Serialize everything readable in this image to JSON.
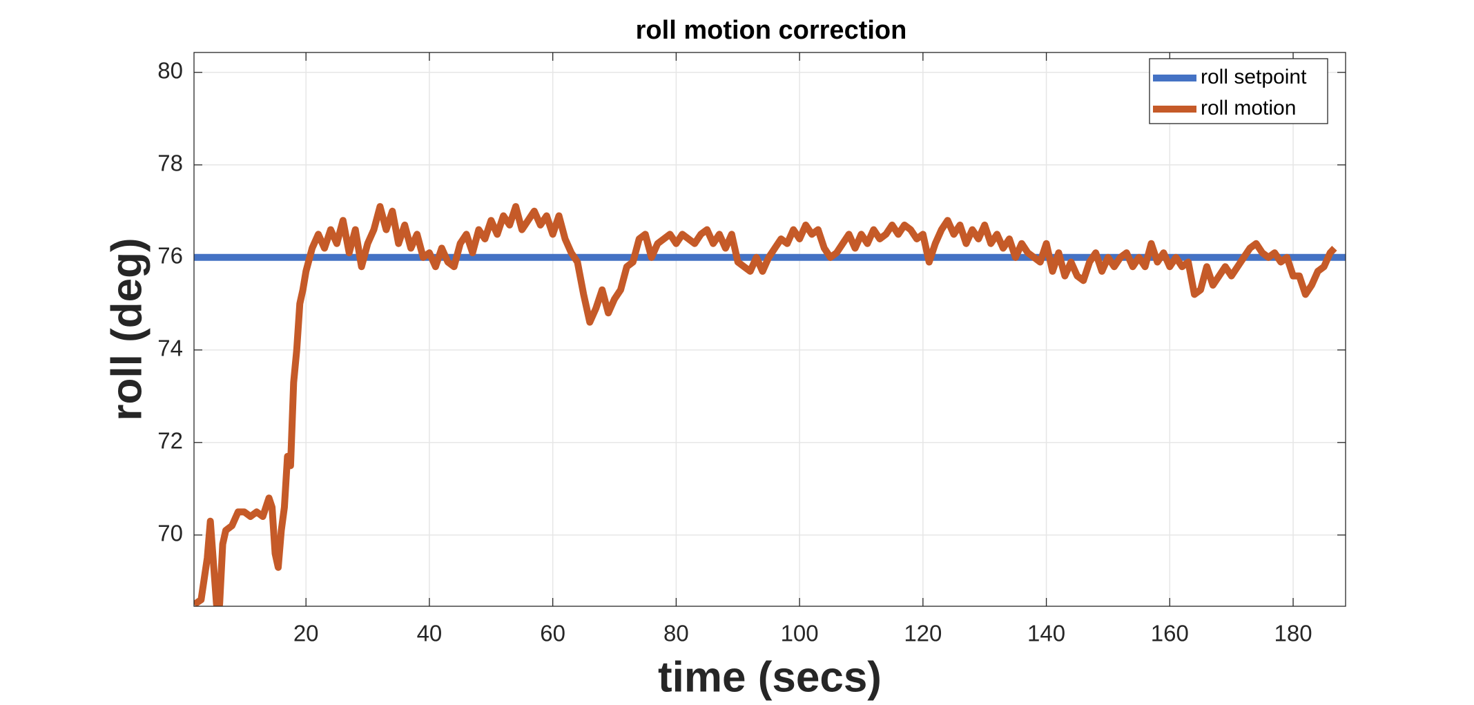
{
  "chart_data": {
    "type": "line",
    "title": "roll motion correction",
    "x_label": "time (secs)",
    "y_label": "roll (deg)",
    "xlim": [
      1.85,
      188.5
    ],
    "ylim": [
      68.46,
      80.43
    ],
    "xticks": [
      20,
      40,
      60,
      80,
      100,
      120,
      140,
      160,
      180
    ],
    "yticks": [
      70,
      72,
      74,
      76,
      78,
      80
    ],
    "grid": true,
    "legend_position": "upper-right",
    "series": [
      {
        "name": "roll setpoint",
        "color": "#4472c4",
        "x": [
          1.85,
          188.5
        ],
        "values": [
          76,
          76
        ]
      },
      {
        "name": "roll motion",
        "color": "#c55a28",
        "x": [
          1.9,
          3,
          4,
          4.5,
          5,
          5.5,
          6,
          6.5,
          7,
          8,
          9,
          10,
          11,
          12,
          13,
          14,
          14.5,
          15,
          15.5,
          16,
          16.5,
          17,
          17.5,
          18,
          18.5,
          19,
          19.5,
          20,
          21,
          22,
          23,
          24,
          25,
          26,
          27,
          28,
          29,
          30,
          31,
          32,
          33,
          34,
          35,
          36,
          37,
          38,
          39,
          40,
          41,
          42,
          43,
          44,
          45,
          46,
          47,
          48,
          49,
          50,
          51,
          52,
          53,
          54,
          55,
          56,
          57,
          58,
          59,
          60,
          61,
          62,
          63,
          64,
          65,
          66,
          67,
          68,
          69,
          70,
          71,
          72,
          73,
          74,
          75,
          76,
          77,
          78,
          79,
          80,
          81,
          82,
          83,
          84,
          85,
          86,
          87,
          88,
          89,
          90,
          91,
          92,
          93,
          94,
          95,
          96,
          97,
          98,
          99,
          100,
          101,
          102,
          103,
          104,
          105,
          106,
          107,
          108,
          109,
          110,
          111,
          112,
          113,
          114,
          115,
          116,
          117,
          118,
          119,
          120,
          121,
          122,
          123,
          124,
          125,
          126,
          127,
          128,
          129,
          130,
          131,
          132,
          133,
          134,
          135,
          136,
          137,
          138,
          139,
          140,
          141,
          142,
          143,
          144,
          145,
          146,
          147,
          148,
          149,
          150,
          151,
          152,
          153,
          154,
          155,
          156,
          157,
          158,
          159,
          160,
          161,
          162,
          163,
          164,
          165,
          166,
          167,
          168,
          169,
          170,
          171,
          172,
          173,
          174,
          175,
          176,
          177,
          178,
          179,
          180,
          181,
          182,
          183,
          184,
          185,
          186,
          186.7
        ],
        "values": [
          68.5,
          68.6,
          69.5,
          70.3,
          69.4,
          68.5,
          68.5,
          69.8,
          70.1,
          70.2,
          70.5,
          70.5,
          70.4,
          70.5,
          70.4,
          70.8,
          70.6,
          69.6,
          69.3,
          70.1,
          70.6,
          71.7,
          71.5,
          73.3,
          74.0,
          75.0,
          75.3,
          75.7,
          76.2,
          76.5,
          76.2,
          76.6,
          76.3,
          76.8,
          76.1,
          76.6,
          75.8,
          76.3,
          76.6,
          77.1,
          76.6,
          77.0,
          76.3,
          76.7,
          76.2,
          76.5,
          76.0,
          76.1,
          75.8,
          76.2,
          75.9,
          75.8,
          76.3,
          76.5,
          76.1,
          76.6,
          76.4,
          76.8,
          76.5,
          76.9,
          76.7,
          77.1,
          76.6,
          76.8,
          77.0,
          76.7,
          76.9,
          76.5,
          76.9,
          76.4,
          76.1,
          75.9,
          75.2,
          74.6,
          74.9,
          75.3,
          74.8,
          75.1,
          75.3,
          75.8,
          75.9,
          76.4,
          76.5,
          76.0,
          76.3,
          76.4,
          76.5,
          76.3,
          76.5,
          76.4,
          76.3,
          76.5,
          76.6,
          76.3,
          76.5,
          76.2,
          76.5,
          75.9,
          75.8,
          75.7,
          76.0,
          75.7,
          76.0,
          76.2,
          76.4,
          76.3,
          76.6,
          76.4,
          76.7,
          76.5,
          76.6,
          76.2,
          76.0,
          76.1,
          76.3,
          76.5,
          76.2,
          76.5,
          76.3,
          76.6,
          76.4,
          76.5,
          76.7,
          76.5,
          76.7,
          76.6,
          76.4,
          76.5,
          75.9,
          76.3,
          76.6,
          76.8,
          76.5,
          76.7,
          76.3,
          76.6,
          76.4,
          76.7,
          76.3,
          76.5,
          76.2,
          76.4,
          76.0,
          76.3,
          76.1,
          76.0,
          75.9,
          76.3,
          75.7,
          76.1,
          75.6,
          75.9,
          75.6,
          75.5,
          75.9,
          76.1,
          75.7,
          76.0,
          75.8,
          76.0,
          76.1,
          75.8,
          76.0,
          75.8,
          76.3,
          75.9,
          76.1,
          75.8,
          76.0,
          75.8,
          75.9,
          75.2,
          75.3,
          75.8,
          75.4,
          75.6,
          75.8,
          75.6,
          75.8,
          76.0,
          76.2,
          76.3,
          76.1,
          76.0,
          76.1,
          75.9,
          76.0,
          75.6,
          75.6,
          75.2,
          75.4,
          75.7,
          75.8,
          76.1,
          76.2
        ]
      }
    ]
  }
}
